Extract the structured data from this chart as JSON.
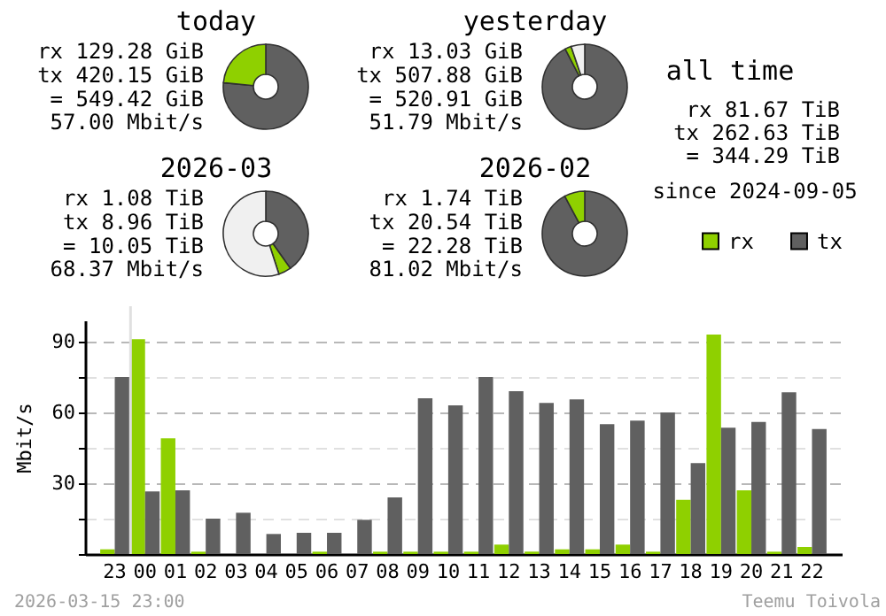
{
  "chart_data": [
    {
      "type": "donut",
      "title": "today",
      "categories": [
        null,
        null
      ],
      "values": [
        76.5,
        23.5
      ],
      "colors": [
        "#606060",
        "#8fd000"
      ],
      "annotations": [
        "rx 129.28 GiB",
        "tx 420.15 GiB",
        "= 549.42 GiB",
        "57.00 Mbit/s"
      ]
    },
    {
      "type": "donut",
      "title": "yesterday",
      "categories": [
        null,
        null,
        null
      ],
      "values": [
        92.4,
        2.4,
        5.2
      ],
      "colors": [
        "#606060",
        "#8fd000",
        "#f0f0f0"
      ],
      "annotations": [
        "rx 13.03 GiB",
        "tx 507.88 GiB",
        "= 520.91 GiB",
        "51.79 Mbit/s"
      ]
    },
    {
      "type": "other",
      "title": "all time",
      "annotations": [
        "rx 81.67 TiB",
        "tx 262.63 TiB",
        "= 344.29 TiB",
        "since 2024-09-05"
      ]
    },
    {
      "type": "donut",
      "title": "2026-03",
      "categories": [
        null,
        null,
        null
      ],
      "values": [
        40.2,
        4.8,
        55.0
      ],
      "colors": [
        "#606060",
        "#8fd000",
        "#f0f0f0"
      ],
      "annotations": [
        "rx 1.08 TiB",
        "tx 8.96 TiB",
        "= 10.05 TiB",
        "68.37 Mbit/s"
      ]
    },
    {
      "type": "donut",
      "title": "2026-02",
      "categories": [
        null,
        null
      ],
      "values": [
        92.2,
        7.8
      ],
      "colors": [
        "#606060",
        "#8fd000"
      ],
      "annotations": [
        "rx 1.74 TiB",
        "tx 20.54 TiB",
        "= 22.28 TiB",
        "81.02 Mbit/s"
      ]
    },
    {
      "type": "bar",
      "ylabel": "Mbit/s",
      "categories": [
        "23",
        "00",
        "01",
        "02",
        "03",
        "04",
        "05",
        "06",
        "07",
        "08",
        "09",
        "10",
        "11",
        "12",
        "13",
        "14",
        "15",
        "16",
        "17",
        "18",
        "19",
        "20",
        "21",
        "22"
      ],
      "series": [
        {
          "name": "rx",
          "color": "#8fd000",
          "values": [
            2,
            91,
            49,
            1,
            0,
            0,
            0,
            1,
            0,
            1,
            1,
            1,
            1,
            4,
            1,
            2,
            2,
            4,
            1,
            23,
            93,
            27,
            1,
            3
          ]
        },
        {
          "name": "tx",
          "color": "#606060",
          "values": [
            75,
            26.5,
            27,
            15,
            17.5,
            8.5,
            9,
            9,
            14.5,
            24,
            66,
            63,
            75,
            69,
            64,
            65.5,
            55,
            56.5,
            60,
            38.5,
            53.5,
            56,
            68.5,
            53
          ]
        }
      ],
      "ylim": [
        0,
        99
      ],
      "yticks": [
        {
          "value": 0,
          "label": null
        },
        {
          "value": 15,
          "label": null
        },
        30,
        {
          "value": 45,
          "label": null
        },
        60,
        {
          "value": 75,
          "label": null
        },
        90
      ],
      "grid": "y",
      "legend": "top right",
      "ref_lines": [
        {
          "axis": "x",
          "value": "00",
          "color": "#e0e0e0"
        }
      ],
      "annotations": [
        "2026-03-15 23:00",
        "Teemu Toivola"
      ]
    }
  ]
}
